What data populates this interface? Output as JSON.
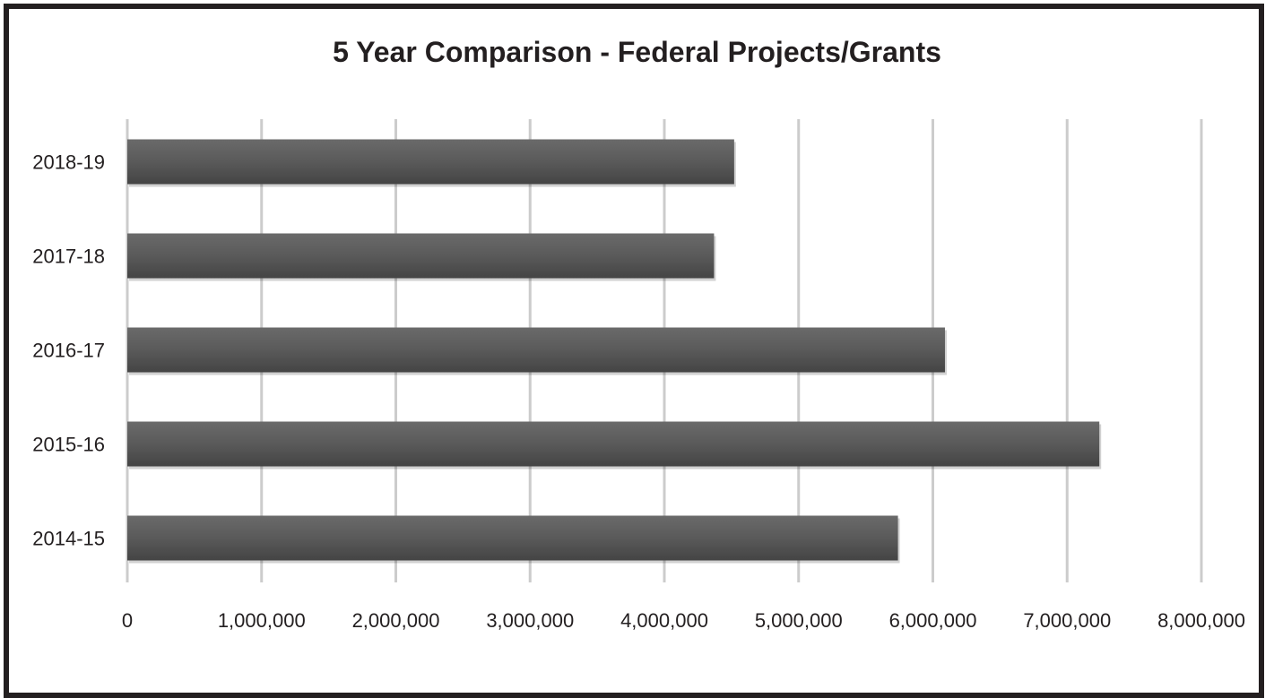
{
  "chart_data": {
    "type": "bar",
    "orientation": "horizontal",
    "title": "5 Year Comparison - Federal Projects/Grants",
    "xlabel": "",
    "ylabel": "",
    "categories": [
      "2018-19",
      "2017-18",
      "2016-17",
      "2015-16",
      "2014-15"
    ],
    "values": [
      4520000,
      4370000,
      6090000,
      7240000,
      5740000
    ],
    "xlim": [
      0,
      8000000
    ],
    "x_ticks": [
      "0",
      "1,000,000",
      "2,000,000",
      "3,000,000",
      "4,000,000",
      "5,000,000",
      "6,000,000",
      "7,000,000",
      "8,000,000"
    ],
    "grid": true,
    "legend": "none",
    "colors": {
      "bar": "#555555",
      "grid": "#cccccc",
      "text": "#231f20",
      "border": "#231f20"
    }
  }
}
